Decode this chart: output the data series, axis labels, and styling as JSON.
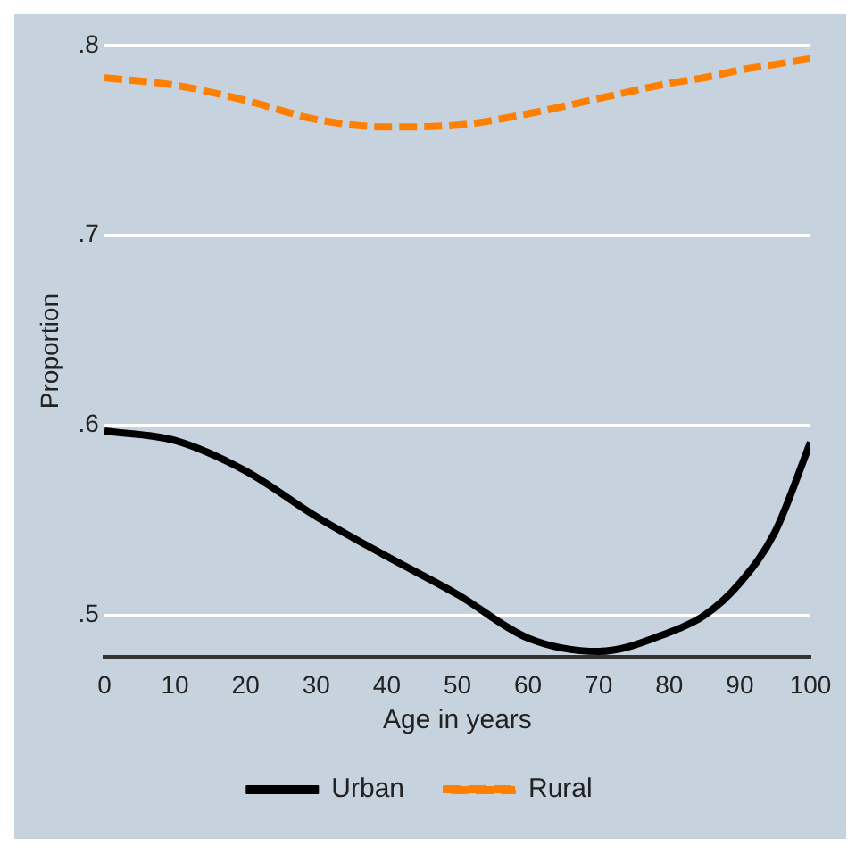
{
  "chart_data": {
    "type": "line",
    "xlabel": "Age in years",
    "ylabel": "Proportion",
    "x": [
      0,
      10,
      20,
      30,
      40,
      50,
      60,
      70,
      80,
      85,
      90,
      95,
      100
    ],
    "series": [
      {
        "name": "Urban",
        "color": "#000000",
        "line_style": "solid",
        "values": [
          0.597,
          0.592,
          0.576,
          0.552,
          0.531,
          0.511,
          0.488,
          0.481,
          0.491,
          0.5,
          0.517,
          0.544,
          0.591
        ]
      },
      {
        "name": "Rural",
        "color": "#ff7f00",
        "line_style": "dashed",
        "values": [
          0.783,
          0.779,
          0.771,
          0.761,
          0.757,
          0.758,
          0.764,
          0.772,
          0.78,
          0.783,
          0.787,
          0.79,
          0.793
        ]
      }
    ],
    "xlim": [
      0,
      100
    ],
    "xticks": [
      0,
      10,
      20,
      30,
      40,
      50,
      60,
      70,
      80,
      90,
      100
    ],
    "ylim": [
      0.478,
      0.8
    ],
    "yticks": [
      {
        "value": 0.5,
        "label": ".5"
      },
      {
        "value": 0.6,
        "label": ".6"
      },
      {
        "value": 0.7,
        "label": ".7"
      },
      {
        "value": 0.8,
        "label": ".8"
      }
    ],
    "grid": "y",
    "legend": "bottom",
    "marker": "none"
  }
}
